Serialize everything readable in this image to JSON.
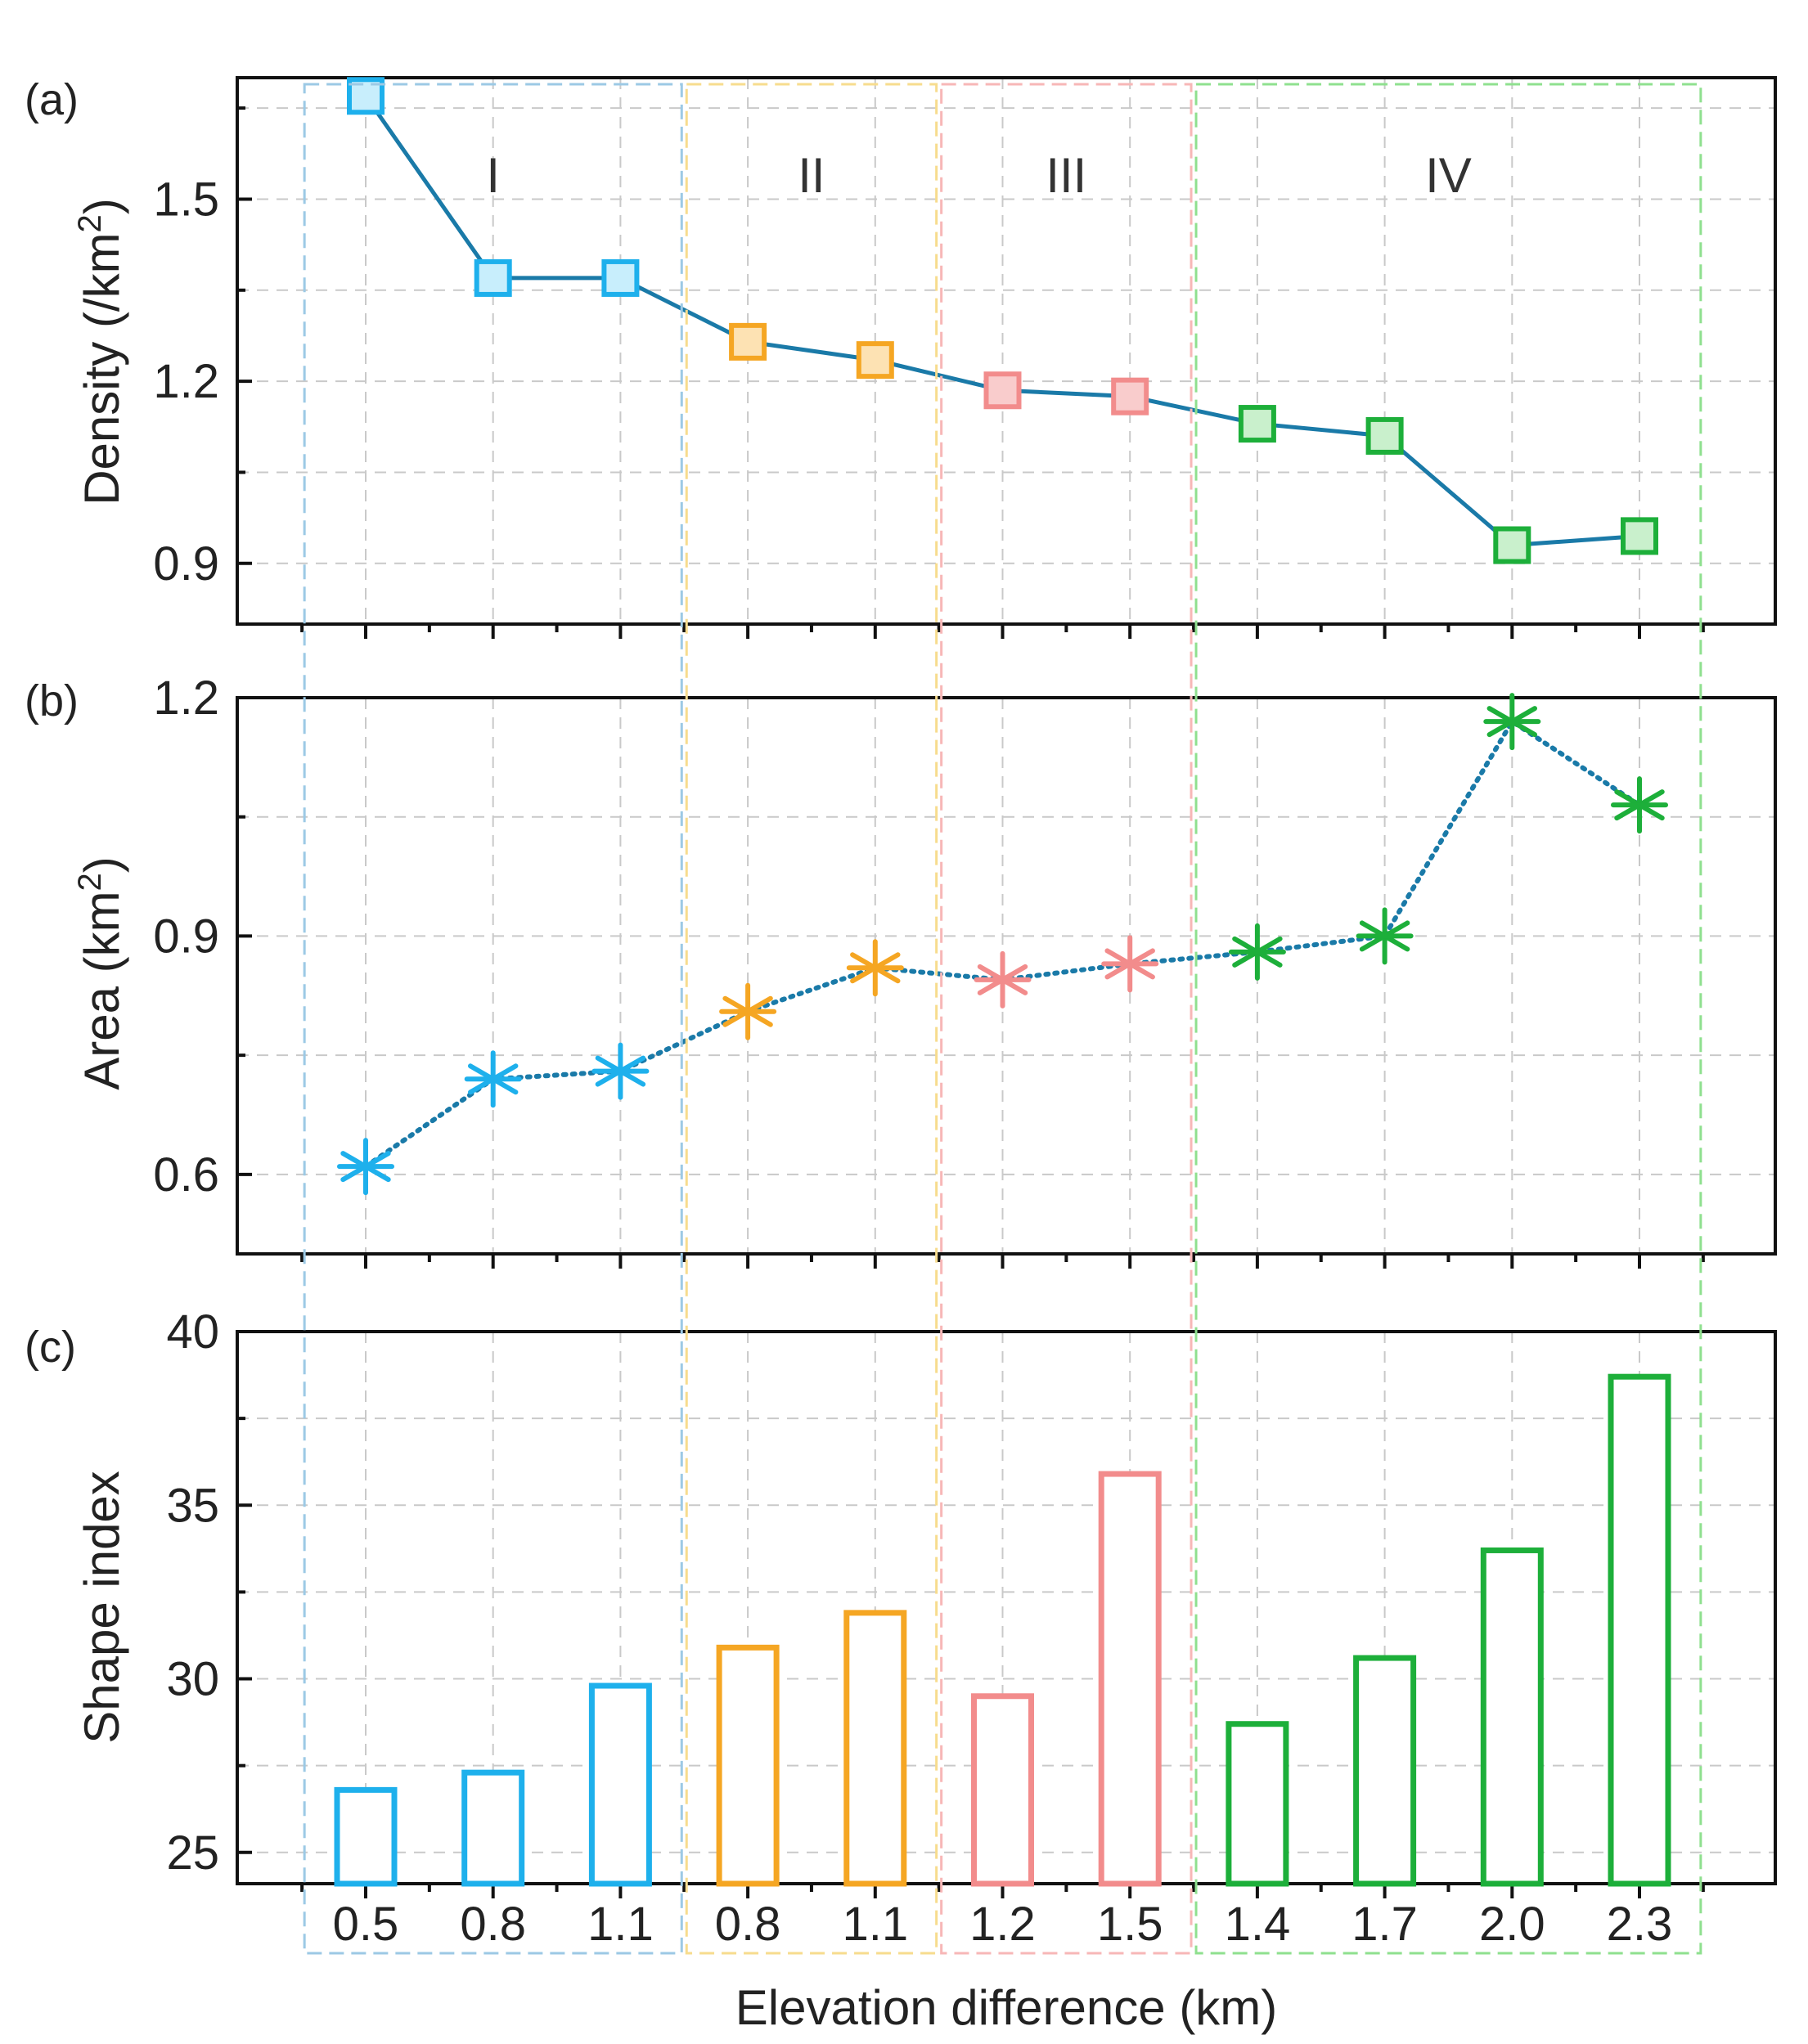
{
  "colors": {
    "I": "#1eb0ec",
    "II": "#f5a623",
    "III": "#f28c8c",
    "IV": "#1daf3a",
    "line": "#1a7aa8",
    "box_I": "#9cc9e5",
    "box_II": "#f7dc8e",
    "box_III": "#f7b7b7",
    "box_IV": "#8fe08f",
    "fill_I": "#c8eefc",
    "fill_II": "#fde2b3",
    "fill_III": "#f9cccc",
    "fill_IV": "#c9f0cc"
  },
  "groups": [
    {
      "name": "I",
      "label": "I",
      "start": 0,
      "end": 2
    },
    {
      "name": "II",
      "label": "II",
      "start": 3,
      "end": 4
    },
    {
      "name": "III",
      "label": "III",
      "start": 5,
      "end": 6
    },
    {
      "name": "IV",
      "label": "IV",
      "start": 7,
      "end": 10
    }
  ],
  "chart_data": [
    {
      "type": "line",
      "panel": "(a)",
      "ylabel": "Density (/km²)",
      "ylabel_main": "Density (/km",
      "ylabel_sup": "2",
      "ylabel_tail": ")",
      "categories": [
        "0.5",
        "0.8",
        "1.1",
        "0.8",
        "1.1",
        "1.2",
        "1.5",
        "1.4",
        "1.7",
        "2.0",
        "2.3"
      ],
      "values": [
        1.67,
        1.37,
        1.37,
        1.265,
        1.235,
        1.185,
        1.175,
        1.13,
        1.11,
        0.93,
        0.945
      ],
      "marker": "square",
      "line_style": "solid",
      "ylim": [
        0.8,
        1.7
      ],
      "yticks": [
        0.9,
        1.2,
        1.5
      ],
      "ytick_labels": [
        "0.9",
        "1.2",
        "1.5"
      ]
    },
    {
      "type": "line",
      "panel": "(b)",
      "ylabel": "Area (km²)",
      "ylabel_main": "Area (km",
      "ylabel_sup": "2",
      "ylabel_tail": ")",
      "categories": [
        "0.5",
        "0.8",
        "1.1",
        "0.8",
        "1.1",
        "1.2",
        "1.5",
        "1.4",
        "1.7",
        "2.0",
        "2.3"
      ],
      "values": [
        0.61,
        0.72,
        0.73,
        0.805,
        0.86,
        0.845,
        0.865,
        0.88,
        0.9,
        1.17,
        1.065
      ],
      "marker": "asterisk",
      "line_style": "dotted",
      "ylim": [
        0.5,
        1.2
      ],
      "yticks": [
        0.6,
        0.9,
        1.2
      ],
      "ytick_labels": [
        "0.6",
        "0.9",
        "1.2"
      ]
    },
    {
      "type": "bar",
      "panel": "(c)",
      "ylabel": "Shape index",
      "xlabel": "Elevation difference (km)",
      "categories": [
        "0.5",
        "0.8",
        "1.1",
        "0.8",
        "1.1",
        "1.2",
        "1.5",
        "1.4",
        "1.7",
        "2.0",
        "2.3"
      ],
      "values": [
        26.8,
        27.3,
        29.8,
        30.9,
        31.9,
        29.5,
        35.9,
        28.7,
        30.6,
        33.7,
        38.7
      ],
      "bar_style": "outline",
      "ylim": [
        24.1,
        40
      ],
      "yticks": [
        25,
        30,
        35,
        40
      ],
      "ytick_labels": [
        "25",
        "30",
        "35",
        "40"
      ]
    }
  ]
}
